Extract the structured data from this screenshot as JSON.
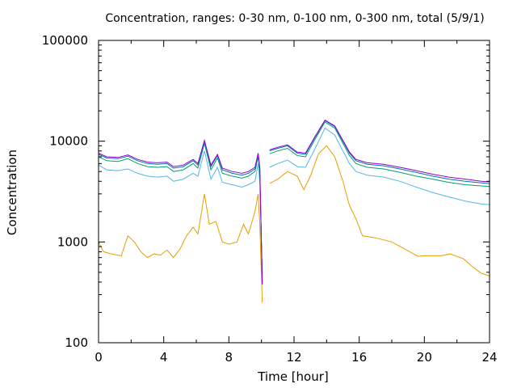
{
  "chart_data": {
    "type": "line",
    "title": "Concentration, ranges: 0-30 nm, 0-100 nm, 0-300 nm, total (5/9/1)",
    "xlabel": "Time [hour]",
    "ylabel": "Concentration",
    "xlim": [
      0,
      24
    ],
    "ylim": [
      100,
      100000
    ],
    "yscale": "log",
    "grid": false,
    "legend": "none",
    "x_ticks": [
      "0",
      "4",
      "8",
      "12",
      "16",
      "20",
      "24"
    ],
    "y_ticks": [
      "100",
      "1000",
      "10000",
      "100000"
    ],
    "series": [
      {
        "color": "#e69f00",
        "points": [
          [
            0,
            1000
          ],
          [
            0.3,
            800
          ],
          [
            0.8,
            760
          ],
          [
            1.4,
            730
          ],
          [
            1.8,
            1150
          ],
          [
            2.2,
            1000
          ],
          [
            2.6,
            800
          ],
          [
            3.0,
            700
          ],
          [
            3.4,
            760
          ],
          [
            3.8,
            740
          ],
          [
            4.2,
            830
          ],
          [
            4.6,
            700
          ],
          [
            5.0,
            850
          ],
          [
            5.4,
            1150
          ],
          [
            5.8,
            1400
          ],
          [
            6.1,
            1200
          ],
          [
            6.5,
            3000
          ],
          [
            6.8,
            1500
          ],
          [
            7.2,
            1600
          ],
          [
            7.6,
            1000
          ],
          [
            8.0,
            950
          ],
          [
            8.5,
            1000
          ],
          [
            8.9,
            1500
          ],
          [
            9.2,
            1200
          ],
          [
            9.6,
            2000
          ],
          [
            9.8,
            3000
          ],
          [
            9.9,
            1500
          ],
          [
            10.05,
            250
          ],
          [
            10.2,
            null
          ],
          [
            10.5,
            3800
          ],
          [
            11,
            4200
          ],
          [
            11.6,
            5000
          ],
          [
            12.2,
            4500
          ],
          [
            12.6,
            3300
          ],
          [
            13.0,
            4500
          ],
          [
            13.5,
            7500
          ],
          [
            14.0,
            9000
          ],
          [
            14.5,
            7000
          ],
          [
            15.0,
            4000
          ],
          [
            15.4,
            2300
          ],
          [
            15.8,
            1700
          ],
          [
            16.2,
            1150
          ],
          [
            17,
            1100
          ],
          [
            18,
            1000
          ],
          [
            18.8,
            850
          ],
          [
            19.6,
            720
          ],
          [
            20,
            730
          ],
          [
            21,
            730
          ],
          [
            21.6,
            760
          ],
          [
            22.4,
            680
          ],
          [
            23,
            560
          ],
          [
            23.5,
            490
          ],
          [
            24,
            460
          ]
        ]
      },
      {
        "color": "#56b4e9",
        "points": [
          [
            0,
            5800
          ],
          [
            0.5,
            5200
          ],
          [
            1.2,
            5100
          ],
          [
            1.8,
            5300
          ],
          [
            2.4,
            4800
          ],
          [
            3.0,
            4500
          ],
          [
            3.6,
            4400
          ],
          [
            4.2,
            4500
          ],
          [
            4.6,
            4000
          ],
          [
            5.2,
            4200
          ],
          [
            5.8,
            4800
          ],
          [
            6.1,
            4500
          ],
          [
            6.5,
            8000
          ],
          [
            6.9,
            4200
          ],
          [
            7.3,
            5500
          ],
          [
            7.6,
            3900
          ],
          [
            8.2,
            3700
          ],
          [
            8.8,
            3500
          ],
          [
            9.2,
            3700
          ],
          [
            9.6,
            4000
          ],
          [
            9.8,
            6000
          ],
          [
            9.9,
            4000
          ],
          [
            10.05,
            500
          ],
          [
            10.2,
            null
          ],
          [
            10.5,
            5500
          ],
          [
            11,
            6000
          ],
          [
            11.6,
            6500
          ],
          [
            12.2,
            5600
          ],
          [
            12.7,
            5500
          ],
          [
            13.3,
            8500
          ],
          [
            13.9,
            13500
          ],
          [
            14.5,
            11500
          ],
          [
            15.0,
            8000
          ],
          [
            15.4,
            6000
          ],
          [
            15.8,
            5000
          ],
          [
            16.5,
            4600
          ],
          [
            17.5,
            4400
          ],
          [
            18.5,
            4000
          ],
          [
            19.5,
            3500
          ],
          [
            20.5,
            3100
          ],
          [
            21.5,
            2800
          ],
          [
            22.5,
            2550
          ],
          [
            23.5,
            2380
          ],
          [
            24,
            2350
          ]
        ]
      },
      {
        "color": "#009e73",
        "points": [
          [
            0,
            7000
          ],
          [
            0.5,
            6400
          ],
          [
            1.2,
            6300
          ],
          [
            1.8,
            6700
          ],
          [
            2.4,
            6000
          ],
          [
            3.0,
            5600
          ],
          [
            3.6,
            5500
          ],
          [
            4.2,
            5600
          ],
          [
            4.6,
            5000
          ],
          [
            5.2,
            5200
          ],
          [
            5.8,
            6000
          ],
          [
            6.1,
            5400
          ],
          [
            6.5,
            9500
          ],
          [
            6.9,
            5200
          ],
          [
            7.3,
            6800
          ],
          [
            7.6,
            4800
          ],
          [
            8.2,
            4500
          ],
          [
            8.8,
            4300
          ],
          [
            9.2,
            4500
          ],
          [
            9.6,
            5000
          ],
          [
            9.8,
            7000
          ],
          [
            9.9,
            5000
          ],
          [
            10.05,
            400
          ],
          [
            10.2,
            null
          ],
          [
            10.5,
            7500
          ],
          [
            11,
            8000
          ],
          [
            11.6,
            8500
          ],
          [
            12.2,
            7200
          ],
          [
            12.7,
            7000
          ],
          [
            13.3,
            10500
          ],
          [
            13.9,
            15500
          ],
          [
            14.5,
            13500
          ],
          [
            15.0,
            9500
          ],
          [
            15.4,
            7200
          ],
          [
            15.8,
            6000
          ],
          [
            16.5,
            5500
          ],
          [
            17.5,
            5300
          ],
          [
            18.5,
            4900
          ],
          [
            19.5,
            4500
          ],
          [
            20.5,
            4200
          ],
          [
            21.5,
            3900
          ],
          [
            22.5,
            3700
          ],
          [
            23.5,
            3600
          ],
          [
            24,
            3550
          ]
        ]
      },
      {
        "color": "#0072b2",
        "points": [
          [
            0,
            7400
          ],
          [
            0.5,
            6800
          ],
          [
            1.2,
            6700
          ],
          [
            1.8,
            7100
          ],
          [
            2.4,
            6400
          ],
          [
            3.0,
            6000
          ],
          [
            3.6,
            5900
          ],
          [
            4.2,
            6000
          ],
          [
            4.6,
            5400
          ],
          [
            5.2,
            5600
          ],
          [
            5.8,
            6400
          ],
          [
            6.1,
            5800
          ],
          [
            6.5,
            10000
          ],
          [
            6.9,
            5600
          ],
          [
            7.3,
            7200
          ],
          [
            7.6,
            5200
          ],
          [
            8.2,
            4800
          ],
          [
            8.8,
            4600
          ],
          [
            9.2,
            4800
          ],
          [
            9.6,
            5300
          ],
          [
            9.8,
            7400
          ],
          [
            9.9,
            5300
          ],
          [
            10.05,
            380
          ],
          [
            10.2,
            null
          ],
          [
            10.5,
            8000
          ],
          [
            11,
            8500
          ],
          [
            11.6,
            9000
          ],
          [
            12.2,
            7600
          ],
          [
            12.7,
            7400
          ],
          [
            13.3,
            11000
          ],
          [
            13.9,
            16000
          ],
          [
            14.5,
            14000
          ],
          [
            15.0,
            10000
          ],
          [
            15.4,
            7600
          ],
          [
            15.8,
            6400
          ],
          [
            16.5,
            5900
          ],
          [
            17.5,
            5700
          ],
          [
            18.5,
            5300
          ],
          [
            19.5,
            4900
          ],
          [
            20.5,
            4500
          ],
          [
            21.5,
            4200
          ],
          [
            22.5,
            4000
          ],
          [
            23.5,
            3850
          ],
          [
            24,
            3800
          ]
        ]
      },
      {
        "color": "#9400d3",
        "points": [
          [
            0,
            7600
          ],
          [
            0.5,
            7000
          ],
          [
            1.2,
            6900
          ],
          [
            1.8,
            7300
          ],
          [
            2.4,
            6600
          ],
          [
            3.0,
            6200
          ],
          [
            3.6,
            6100
          ],
          [
            4.2,
            6200
          ],
          [
            4.6,
            5600
          ],
          [
            5.2,
            5800
          ],
          [
            5.8,
            6600
          ],
          [
            6.1,
            6000
          ],
          [
            6.5,
            10200
          ],
          [
            6.9,
            5800
          ],
          [
            7.3,
            7400
          ],
          [
            7.6,
            5400
          ],
          [
            8.2,
            5000
          ],
          [
            8.8,
            4800
          ],
          [
            9.2,
            5000
          ],
          [
            9.6,
            5500
          ],
          [
            9.8,
            7600
          ],
          [
            9.9,
            5500
          ],
          [
            10.05,
            380
          ],
          [
            10.2,
            null
          ],
          [
            10.5,
            8200
          ],
          [
            11,
            8700
          ],
          [
            11.6,
            9200
          ],
          [
            12.2,
            7800
          ],
          [
            12.7,
            7600
          ],
          [
            13.3,
            11200
          ],
          [
            13.9,
            16200
          ],
          [
            14.5,
            14200
          ],
          [
            15.0,
            10200
          ],
          [
            15.4,
            7800
          ],
          [
            15.8,
            6600
          ],
          [
            16.5,
            6100
          ],
          [
            17.5,
            5900
          ],
          [
            18.5,
            5500
          ],
          [
            19.5,
            5100
          ],
          [
            20.5,
            4700
          ],
          [
            21.5,
            4400
          ],
          [
            22.5,
            4200
          ],
          [
            23.5,
            4000
          ],
          [
            24,
            3950
          ]
        ]
      }
    ]
  }
}
